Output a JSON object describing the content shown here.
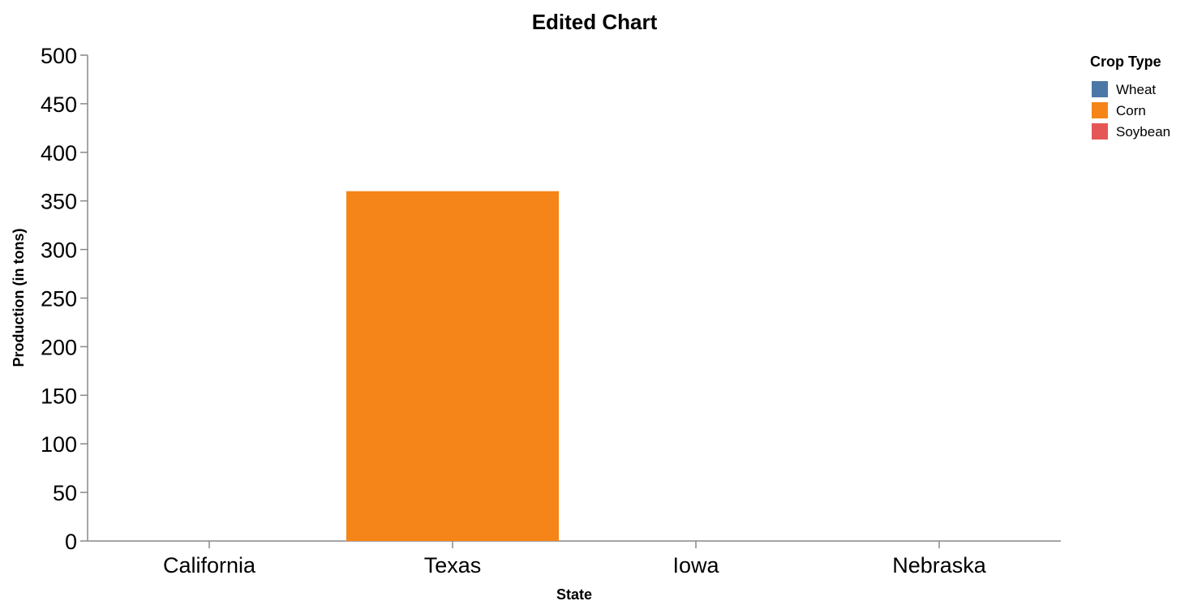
{
  "chart_data": {
    "type": "bar",
    "title": "Edited Chart",
    "xlabel": "State",
    "ylabel": "Production (in tons)",
    "categories": [
      "California",
      "Texas",
      "Iowa",
      "Nebraska"
    ],
    "ylim": [
      0,
      500
    ],
    "yticks": [
      0,
      50,
      100,
      150,
      200,
      250,
      300,
      350,
      400,
      450,
      500
    ],
    "grid": false,
    "legend": {
      "title": "Crop Type",
      "placement": "top-right",
      "items": [
        {
          "label": "Wheat",
          "color": "#4c78a8"
        },
        {
          "label": "Corn",
          "color": "#f58518"
        },
        {
          "label": "Soybean",
          "color": "#e45756"
        }
      ]
    },
    "series": [
      {
        "name": "Wheat",
        "color": "#4c78a8",
        "values": [
          0,
          0,
          0,
          0
        ]
      },
      {
        "name": "Corn",
        "color": "#f58518",
        "values": [
          0,
          360,
          0,
          0
        ]
      },
      {
        "name": "Soybean",
        "color": "#e45756",
        "values": [
          0,
          0,
          0,
          0
        ]
      }
    ]
  }
}
